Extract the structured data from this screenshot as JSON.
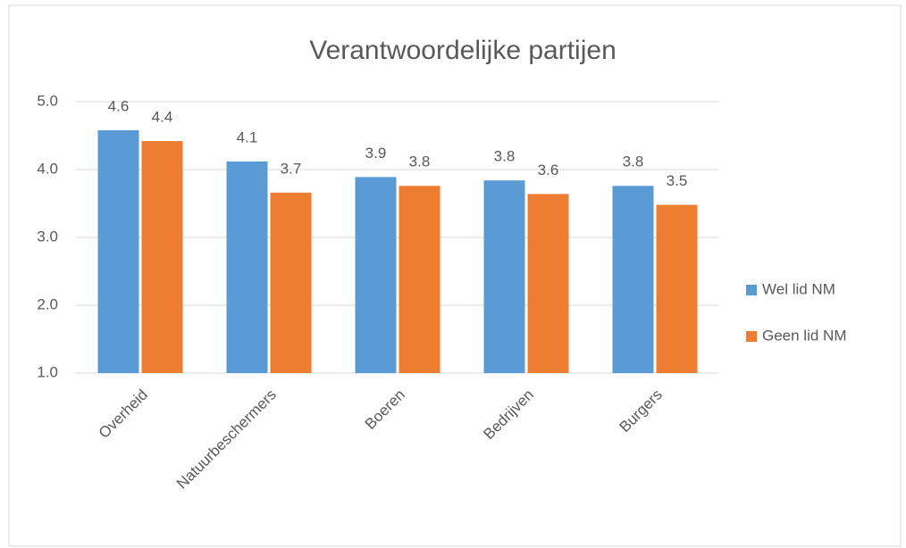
{
  "chart_data": {
    "type": "bar",
    "title": "Verantwoordelijke partijen",
    "categories": [
      "Overheid",
      "Natuurbeschermers",
      "Boeren",
      "Bedrijven",
      "Burgers"
    ],
    "series": [
      {
        "name": "Wel lid NM",
        "color": "#5b9bd5",
        "values": [
          4.58,
          4.12,
          3.89,
          3.84,
          3.76
        ],
        "value_labels": [
          "4.6",
          "4.1",
          "3.9",
          "3.8",
          "3.8"
        ]
      },
      {
        "name": "Geen lid NM",
        "color": "#ed7d31",
        "values": [
          4.42,
          3.66,
          3.76,
          3.64,
          3.48
        ],
        "value_labels": [
          "4.4",
          "3.7",
          "3.8",
          "3.6",
          "3.5"
        ]
      }
    ],
    "ylim": [
      1,
      5
    ],
    "yticks": [
      {
        "value": 1,
        "label": "1.0"
      },
      {
        "value": 2,
        "label": "2.0"
      },
      {
        "value": 3,
        "label": "3.0"
      },
      {
        "value": 4,
        "label": "4.0"
      },
      {
        "value": 5,
        "label": "5.0"
      }
    ],
    "grid": true,
    "legend": "right"
  }
}
